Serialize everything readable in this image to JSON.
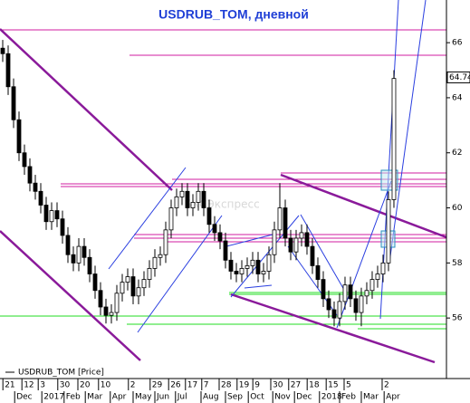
{
  "chart_data": {
    "type": "candlestick",
    "title": "USDRUB_TOM, дневной",
    "legend_label": "USDRUB_TOM [Price]",
    "watermark": "БКСЭкспресс",
    "open": [
      65.8,
      65.6,
      64.4,
      63.2,
      62.0,
      61.5,
      60.9,
      60.6,
      60.1,
      59.5,
      59.9,
      59.6,
      59.0,
      58.3,
      58.0,
      58.6,
      58.2,
      57.6,
      57.0,
      56.4,
      56.1,
      56.2,
      56.9,
      57.3,
      57.5,
      56.8,
      57.1,
      57.4,
      57.8,
      58.2,
      58.3,
      59.2,
      60.0,
      60.4,
      60.6,
      60.0,
      60.2,
      60.6,
      60.0,
      59.4,
      59.1,
      58.8,
      58.1,
      57.7,
      57.6,
      57.8,
      57.9,
      58.1,
      57.6,
      57.7,
      58.3,
      59.2,
      60.0,
      58.9,
      58.4,
      58.9,
      59.1,
      58.6,
      57.9,
      57.4,
      56.7,
      56.3,
      56.0,
      56.6,
      57.2,
      56.7,
      56.2,
      56.8,
      57.0,
      57.4,
      57.6,
      58.0,
      60.3
    ],
    "high": [
      66.1,
      65.9,
      64.7,
      63.5,
      62.3,
      61.8,
      61.2,
      60.9,
      60.4,
      60.2,
      60.2,
      59.9,
      59.3,
      58.6,
      58.9,
      58.9,
      58.5,
      57.9,
      57.3,
      56.7,
      56.5,
      57.2,
      57.6,
      57.8,
      57.8,
      57.4,
      57.7,
      58.1,
      58.5,
      58.6,
      59.5,
      60.3,
      60.7,
      60.9,
      60.9,
      60.5,
      60.9,
      60.9,
      60.3,
      59.7,
      59.4,
      59.1,
      58.4,
      58.0,
      58.1,
      58.2,
      58.4,
      58.4,
      58.0,
      58.6,
      59.5,
      60.9,
      60.3,
      59.2,
      59.2,
      59.4,
      59.4,
      58.9,
      58.2,
      57.7,
      57.0,
      56.6,
      56.9,
      57.5,
      57.5,
      57.0,
      57.1,
      57.3,
      57.7,
      57.9,
      58.3,
      60.6,
      65.0
    ],
    "low": [
      65.3,
      64.1,
      62.9,
      61.7,
      61.2,
      60.6,
      60.3,
      59.8,
      59.2,
      59.2,
      59.3,
      58.7,
      58.0,
      57.7,
      57.7,
      57.9,
      57.3,
      56.7,
      56.1,
      55.8,
      55.8,
      55.9,
      56.6,
      57.0,
      56.5,
      56.5,
      56.8,
      57.1,
      57.5,
      57.9,
      58.0,
      58.9,
      59.7,
      60.1,
      59.7,
      59.7,
      59.9,
      59.7,
      59.1,
      58.8,
      58.5,
      57.8,
      57.4,
      57.3,
      57.3,
      57.5,
      57.6,
      57.3,
      57.3,
      57.4,
      58.0,
      58.9,
      58.6,
      58.1,
      58.1,
      58.6,
      58.3,
      57.6,
      57.1,
      56.4,
      56.0,
      55.7,
      55.7,
      56.3,
      56.4,
      55.9,
      55.7,
      56.5,
      56.7,
      57.1,
      57.3,
      57.7,
      60.0
    ],
    "close": [
      65.6,
      64.4,
      63.2,
      62.0,
      61.5,
      60.9,
      60.6,
      60.1,
      59.5,
      59.9,
      59.6,
      59.0,
      58.3,
      58.0,
      58.6,
      58.2,
      57.6,
      57.0,
      56.4,
      56.1,
      56.2,
      56.9,
      57.3,
      57.5,
      56.8,
      57.1,
      57.4,
      57.8,
      58.2,
      58.3,
      59.2,
      60.0,
      60.4,
      60.6,
      60.0,
      60.2,
      60.6,
      60.0,
      59.4,
      59.1,
      58.8,
      58.1,
      57.7,
      57.6,
      57.8,
      57.9,
      58.1,
      57.6,
      57.7,
      58.3,
      59.2,
      60.0,
      58.9,
      58.4,
      58.9,
      59.1,
      58.6,
      57.9,
      57.4,
      56.7,
      56.3,
      56.0,
      56.6,
      57.2,
      56.7,
      56.2,
      56.8,
      57.0,
      57.4,
      57.6,
      58.0,
      60.3,
      64.7
    ],
    "color": "#000000",
    "last_price": 64.74,
    "xlim": [
      -0.5,
      81.67
    ],
    "ylim": [
      53.9,
      67.55
    ],
    "yticks": [
      56,
      58,
      60,
      62,
      64,
      66
    ],
    "xticks": [
      {
        "value": 0.7,
        "label": "21"
      },
      {
        "value": 4.2,
        "label": "12"
      },
      {
        "value": 7.2,
        "label": "3"
      },
      {
        "value": 10.8,
        "label": "30"
      },
      {
        "value": 14.5,
        "label": "20"
      },
      {
        "value": 18.3,
        "label": "10"
      },
      {
        "value": 23.8,
        "label": "2"
      },
      {
        "value": 27.8,
        "label": "29"
      },
      {
        "value": 31.2,
        "label": "26"
      },
      {
        "value": 34.3,
        "label": "17"
      },
      {
        "value": 37.3,
        "label": "7"
      },
      {
        "value": 40.5,
        "label": "28"
      },
      {
        "value": 43.8,
        "label": "19"
      },
      {
        "value": 46.7,
        "label": "9"
      },
      {
        "value": 50.0,
        "label": "30"
      },
      {
        "value": 53.3,
        "label": "27"
      },
      {
        "value": 56.7,
        "label": "18"
      },
      {
        "value": 60.2,
        "label": "15"
      },
      {
        "value": 63.5,
        "label": "5"
      },
      {
        "value": 70.5,
        "label": "2"
      }
    ],
    "month_ticks": [
      {
        "value": 3.2,
        "label": "Dec"
      },
      {
        "value": 8.2,
        "label": "2017"
      },
      {
        "value": 12.3,
        "label": "Feb"
      },
      {
        "value": 16.2,
        "label": "Mar"
      },
      {
        "value": 20.8,
        "label": "Apr"
      },
      {
        "value": 25.0,
        "label": "May"
      },
      {
        "value": 29.0,
        "label": "Jun"
      },
      {
        "value": 32.8,
        "label": "Jul"
      },
      {
        "value": 37.5,
        "label": "Aug"
      },
      {
        "value": 42.0,
        "label": "Sep"
      },
      {
        "value": 46.2,
        "label": "Oct"
      },
      {
        "value": 50.7,
        "label": "Nov"
      },
      {
        "value": 54.7,
        "label": "Dec"
      },
      {
        "value": 59.3,
        "label": "2018"
      },
      {
        "value": 63.0,
        "label": "Feb"
      },
      {
        "value": 67.0,
        "label": "Mar"
      },
      {
        "value": 71.2,
        "label": "Apr"
      }
    ]
  }
}
